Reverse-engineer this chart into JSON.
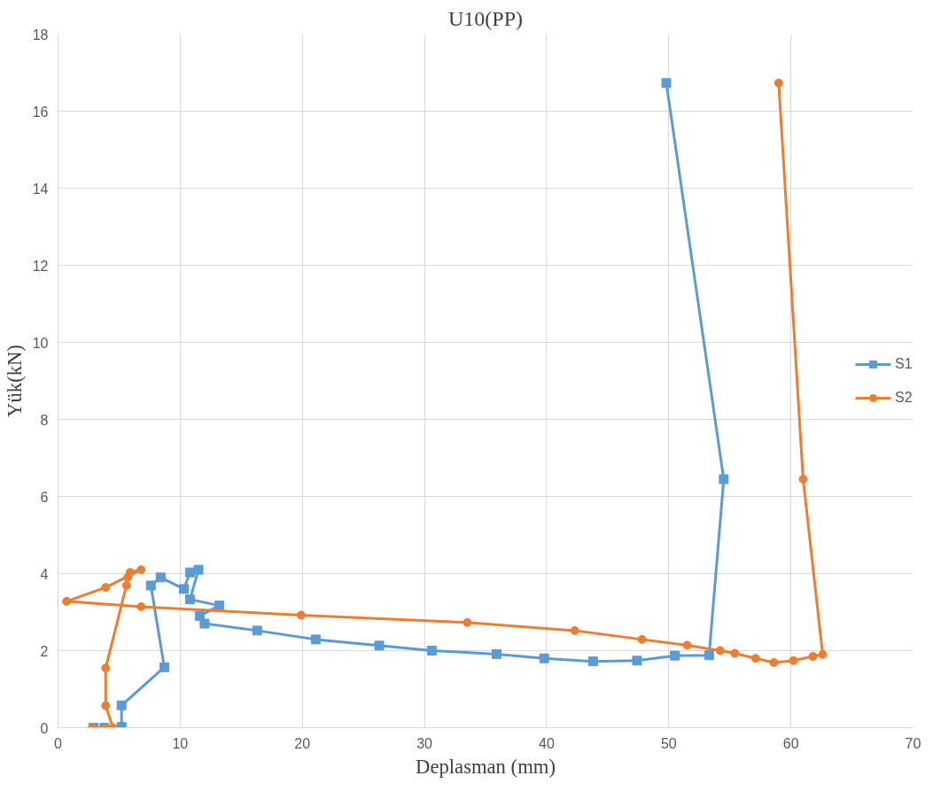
{
  "chart_data": {
    "type": "line",
    "title": "U10(PP)",
    "xlabel": "Deplasman (mm)",
    "ylabel": "Yük(kN)",
    "xlim": [
      0,
      70
    ],
    "xticks": [
      0,
      10,
      20,
      30,
      40,
      50,
      60,
      70
    ],
    "ylim": [
      0,
      18
    ],
    "yticks": [
      0,
      2,
      4,
      6,
      8,
      10,
      12,
      14,
      16,
      18
    ],
    "grid": true,
    "legend": "right",
    "line_style": "solid",
    "series": [
      {
        "name": "S1",
        "color": "#5b9bd5",
        "marker": "square",
        "x": [
          2.9,
          3.8,
          5.2,
          5.2,
          8.7,
          7.6,
          8.4,
          10.3,
          10.8,
          11.5,
          10.8,
          13.2,
          11.6,
          12.0,
          16.3,
          21.1,
          26.3,
          30.6,
          35.9,
          39.8,
          43.8,
          47.4,
          50.5,
          53.3,
          54.5,
          49.8
        ],
        "values": [
          0,
          0,
          0.02,
          0.58,
          1.57,
          3.69,
          3.9,
          3.6,
          4.03,
          4.1,
          3.33,
          3.17,
          2.9,
          2.7,
          2.52,
          2.29,
          2.13,
          2.0,
          1.91,
          1.8,
          1.72,
          1.74,
          1.87,
          1.88,
          6.45,
          16.73
        ]
      },
      {
        "name": "S2",
        "color": "#ed7d31",
        "marker": "circle",
        "x": [
          2.8,
          3.9,
          4.5,
          3.9,
          3.9,
          5.6,
          5.7,
          5.9,
          6.8,
          3.9,
          0.7,
          6.8,
          19.9,
          33.5,
          42.3,
          47.8,
          51.5,
          54.2,
          55.4,
          57.1,
          58.6,
          60.2,
          61.8,
          62.6,
          61.0,
          59.0
        ],
        "values": [
          0,
          0,
          0,
          0.57,
          1.55,
          3.69,
          3.9,
          4.03,
          4.1,
          3.64,
          3.28,
          3.14,
          2.92,
          2.73,
          2.52,
          2.29,
          2.14,
          2.0,
          1.93,
          1.8,
          1.69,
          1.74,
          1.85,
          1.9,
          6.45,
          16.73
        ]
      }
    ]
  }
}
